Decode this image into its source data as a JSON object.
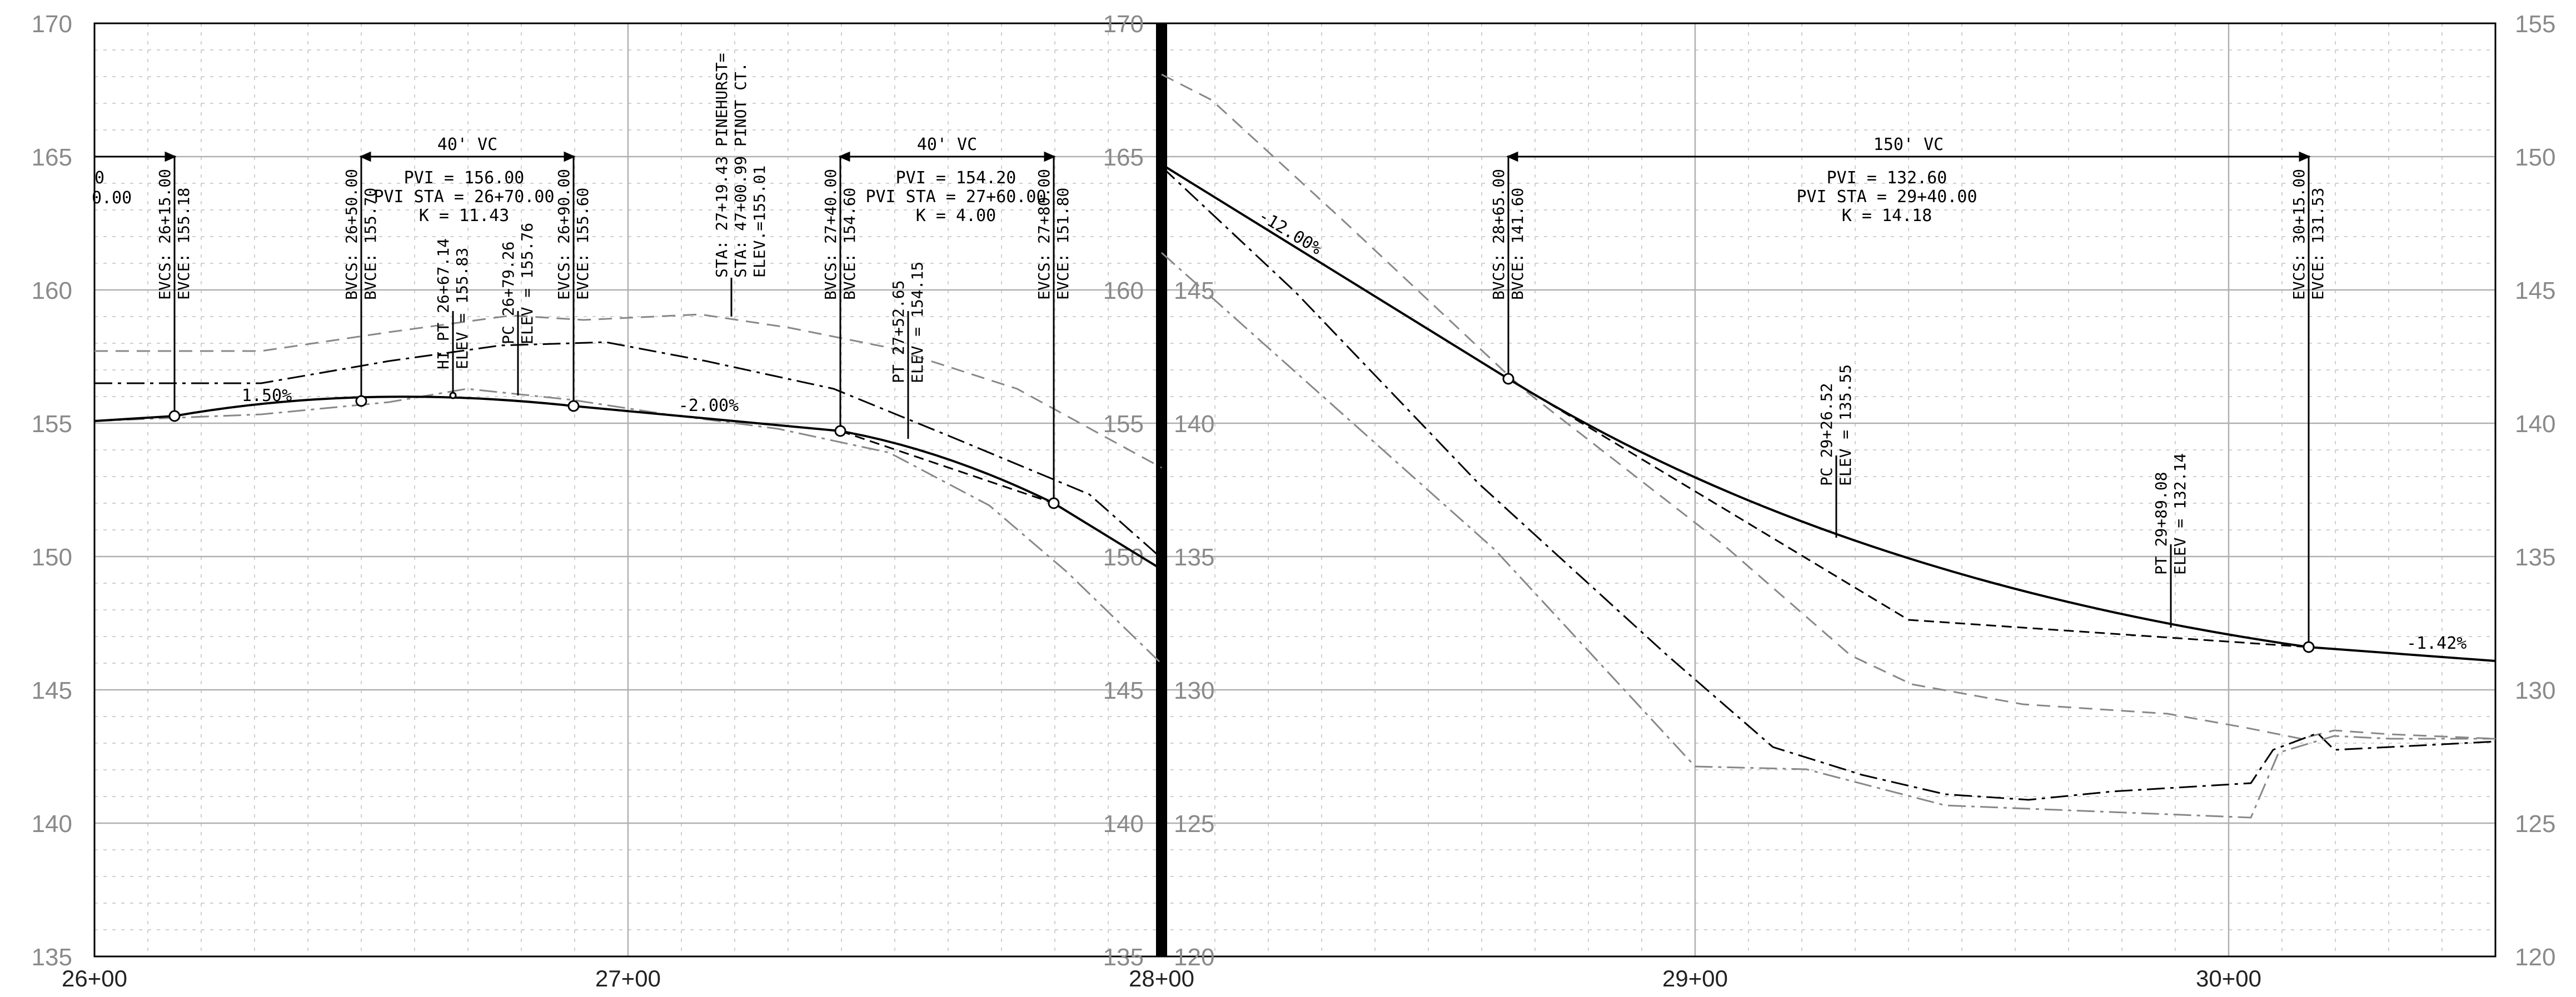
{
  "left_panel": {
    "y_axis_ticks": [
      "170",
      "165",
      "160",
      "155",
      "150",
      "145",
      "140",
      "135"
    ],
    "x_axis_ticks": [
      "26+00",
      "27+00",
      "28+00"
    ],
    "vc_labels": [
      "40'  VC",
      "40'  VC"
    ],
    "pvi_blocks": [
      [
        "PVI  =  156.00",
        "PVI  STA  =  26+70.00",
        "K  =  11.43"
      ],
      [
        "PVI  =  154.20",
        "PVI  STA  =  27+60.00",
        "K  =  4.00"
      ]
    ],
    "cut_text": [
      "0",
      "0.00"
    ],
    "vertical_labels": [
      [
        "EVCS:  26+15.00",
        "EVCE:  155.18"
      ],
      [
        "BVCS:  26+50.00",
        "BVCE:  155.70"
      ],
      [
        "HI PT  26+67.14",
        "ELEV  =  155.83"
      ],
      [
        "PC  26+79.26",
        "ELEV  =  155.76"
      ],
      [
        "EVCS:  26+90.00",
        "EVCE:  155.60"
      ],
      [
        "STA:  27+19.43  PINEHURST=",
        "STA:  47+00.99  PINOT CT.",
        "ELEV.=155.01"
      ],
      [
        "BVCS:  27+40.00",
        "BVCE:  154.60"
      ],
      [
        "PT  27+52.65",
        "ELEV  =  154.15"
      ],
      [
        "EVCS:  27+80.00",
        "EVCE:  151.80"
      ]
    ],
    "grades": [
      "1.50%",
      "-2.00%"
    ]
  },
  "right_panel": {
    "y_axis_inner_ticks": [
      "165",
      "160",
      "155",
      "150",
      "145",
      "140",
      "135"
    ],
    "y_axis_right_ticks": [
      "155",
      "150",
      "145",
      "140",
      "135",
      "130",
      "125",
      "120"
    ],
    "y_axis_mid_ticks": [
      "145",
      "140",
      "135",
      "130",
      "125",
      "120"
    ],
    "x_axis_ticks": [
      "29+00",
      "30+00"
    ],
    "vc_label": "150'  VC",
    "pvi_block": [
      "PVI  =  132.60",
      "PVI  STA  =  29+40.00",
      "K  =  14.18"
    ],
    "vertical_labels": [
      [
        "BVCS:  28+65.00",
        "BVCE:  141.60"
      ],
      [
        "PC  29+26.52",
        "ELEV  =  135.55"
      ],
      [
        "PT  29+89.08",
        "ELEV  =  132.14"
      ],
      [
        "EVCS:  30+15.00",
        "EVCE:  131.53"
      ]
    ],
    "grades": [
      "-12.00%",
      "-1.42%"
    ]
  }
}
